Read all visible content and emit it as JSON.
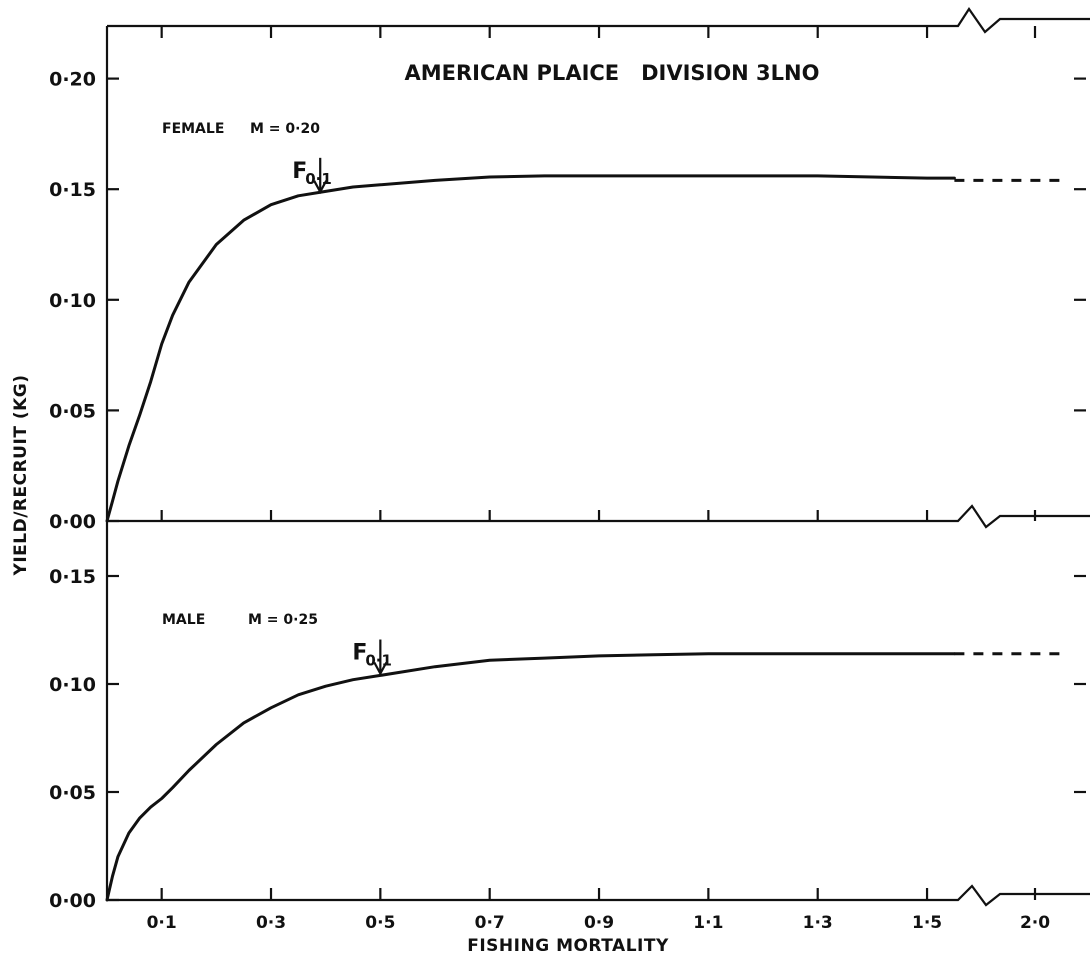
{
  "chart_data": {
    "title": "AMERICAN PLAICE   DIVISION 3LNO",
    "xlabel": "FISHING MORTALITY",
    "ylabel": "YIELD/RECRUIT (KG)",
    "x_tick_labels": [
      "0·1",
      "0·3",
      "0·5",
      "0·7",
      "0·9",
      "1·1",
      "1·3",
      "1·5",
      "2·0"
    ],
    "axis_break_between": [
      "1·5",
      "2·0"
    ],
    "panels": [
      {
        "type": "line",
        "sex_label": "FEMALE",
        "m_label": "M = 0·20",
        "ylim": [
          0,
          0.225
        ],
        "y_tick_values": [
          0,
          0.05,
          0.1,
          0.15,
          0.2
        ],
        "y_tick_labels": [
          "0·00",
          "0·05",
          "0·10",
          "0·15",
          "0·20"
        ],
        "series": [
          {
            "x": [
              0,
              0.01,
              0.02,
              0.04,
              0.06,
              0.08,
              0.1,
              0.12,
              0.15,
              0.2,
              0.25,
              0.3,
              0.35,
              0.4,
              0.45,
              0.5,
              0.6,
              0.7,
              0.8,
              0.9,
              1.0,
              1.1,
              1.2,
              1.3,
              1.4,
              1.5,
              1.55
            ],
            "y": [
              0,
              0.009,
              0.018,
              0.034,
              0.048,
              0.063,
              0.08,
              0.093,
              0.108,
              0.125,
              0.136,
              0.143,
              0.147,
              0.149,
              0.151,
              0.152,
              0.154,
              0.1555,
              0.156,
              0.156,
              0.156,
              0.156,
              0.156,
              0.156,
              0.1555,
              0.155,
              0.155
            ]
          }
        ],
        "extrapolated": {
          "from_x": 1.55,
          "to_x": 2.1,
          "y": 0.154
        },
        "annotation": {
          "label": "F",
          "subscript": "0·1",
          "x": 0.39,
          "y": 0.147
        }
      },
      {
        "type": "line",
        "sex_label": "MALE",
        "m_label": "M = 0·25",
        "ylim": [
          0,
          0.17
        ],
        "y_tick_values": [
          0,
          0.05,
          0.1,
          0.15
        ],
        "y_tick_labels": [
          "0·00",
          "0·05",
          "0·10",
          "0·15"
        ],
        "series": [
          {
            "x": [
              0,
              0.01,
              0.02,
              0.04,
              0.06,
              0.08,
              0.1,
              0.12,
              0.15,
              0.2,
              0.25,
              0.3,
              0.35,
              0.4,
              0.45,
              0.5,
              0.6,
              0.7,
              0.8,
              0.9,
              1.0,
              1.1,
              1.2,
              1.3,
              1.4,
              1.5,
              1.55
            ],
            "y": [
              0,
              0.011,
              0.02,
              0.031,
              0.038,
              0.043,
              0.047,
              0.052,
              0.06,
              0.072,
              0.082,
              0.089,
              0.095,
              0.099,
              0.102,
              0.104,
              0.108,
              0.111,
              0.112,
              0.113,
              0.1135,
              0.114,
              0.114,
              0.114,
              0.114,
              0.114,
              0.114
            ]
          }
        ],
        "extrapolated": {
          "from_x": 1.55,
          "to_x": 2.1,
          "y": 0.114
        },
        "annotation": {
          "label": "F",
          "subscript": "0·1",
          "x": 0.5,
          "y": 0.103
        }
      }
    ]
  }
}
